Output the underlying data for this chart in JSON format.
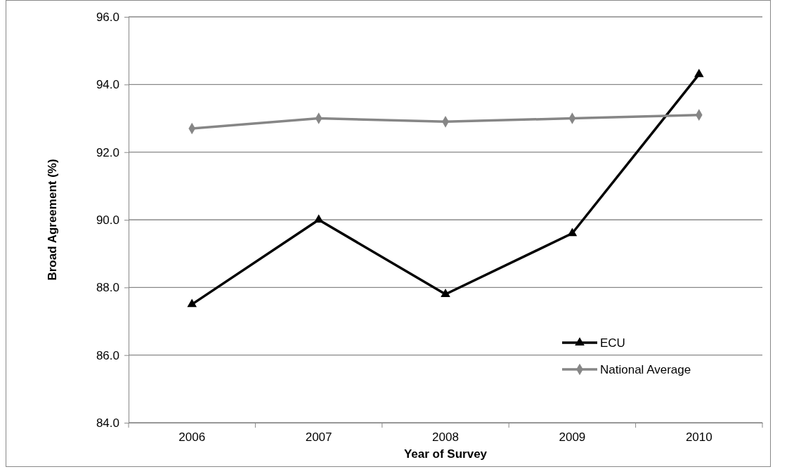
{
  "chart_data": {
    "type": "line",
    "xlabel": "Year of Survey",
    "ylabel": "Broad Agreement (%)",
    "categories": [
      "2006",
      "2007",
      "2008",
      "2009",
      "2010"
    ],
    "series": [
      {
        "name": "ECU",
        "color": "#000000",
        "marker": "triangle",
        "values": [
          87.5,
          90.0,
          87.8,
          89.6,
          94.3
        ]
      },
      {
        "name": "National Average",
        "color": "#868686",
        "marker": "diamond",
        "values": [
          92.7,
          93.0,
          92.9,
          93.0,
          93.1
        ]
      }
    ],
    "ylim": [
      84,
      96
    ],
    "yticks": [
      {
        "value": 84,
        "label": "84.0"
      },
      {
        "value": 86,
        "label": "86.0"
      },
      {
        "value": 88,
        "label": "88.0"
      },
      {
        "value": 90,
        "label": "90.0"
      },
      {
        "value": 92,
        "label": "92.0"
      },
      {
        "value": 94,
        "label": "94.0"
      },
      {
        "value": 96,
        "label": "96.0"
      }
    ],
    "grid": "y",
    "legend": "bottom right",
    "line_style": "solid"
  }
}
